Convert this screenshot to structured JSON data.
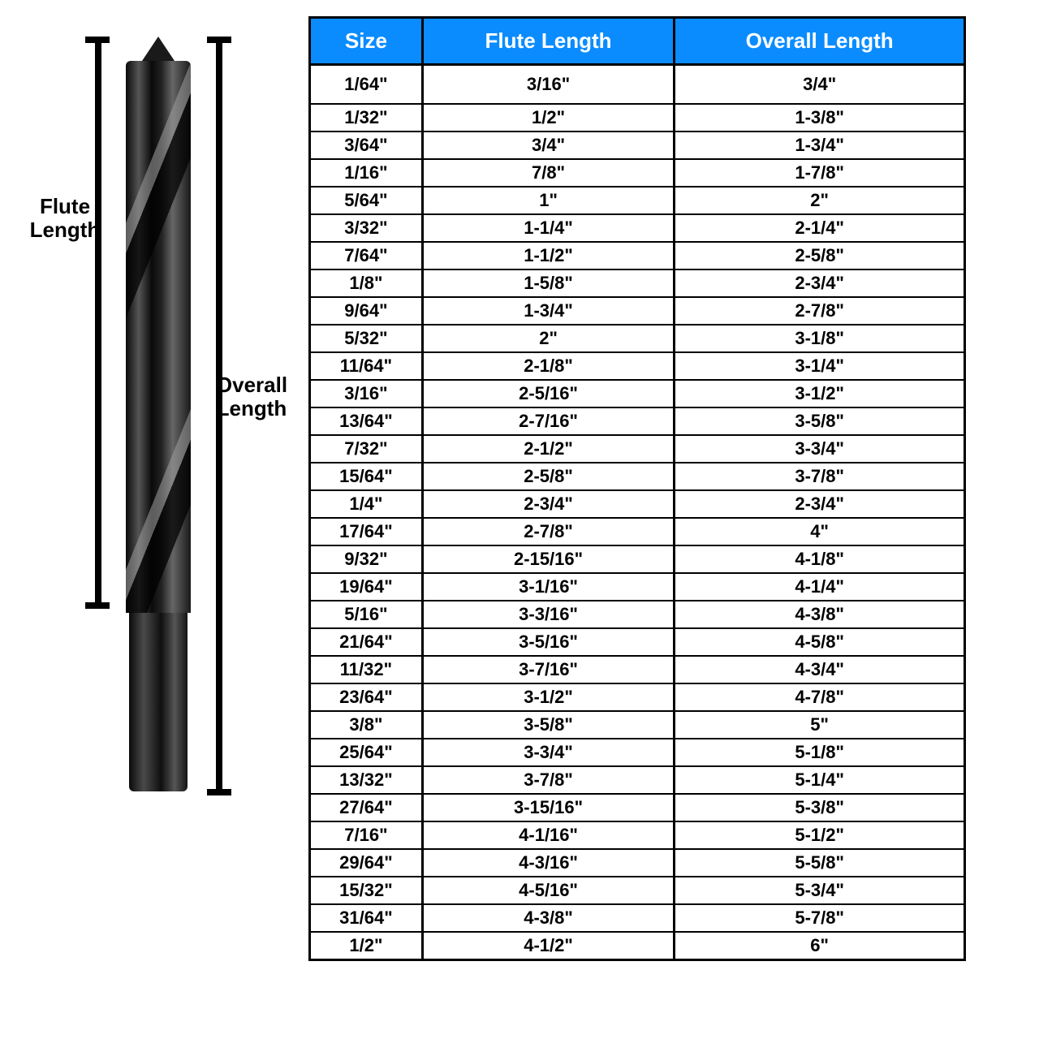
{
  "diagram": {
    "flute_label_l1": "Flute",
    "flute_label_l2": "Length",
    "overall_label_l1": "Overall",
    "overall_label_l2": "Length"
  },
  "table": {
    "header_bg": "#0a8cff",
    "columns": [
      "Size",
      "Flute Length",
      "Overall Length"
    ],
    "rows": [
      [
        "1/64\"",
        "3/16\"",
        "3/4\""
      ],
      [
        "1/32\"",
        "1/2\"",
        "1-3/8\""
      ],
      [
        "3/64\"",
        "3/4\"",
        "1-3/4\""
      ],
      [
        "1/16\"",
        "7/8\"",
        "1-7/8\""
      ],
      [
        "5/64\"",
        "1\"",
        "2\""
      ],
      [
        "3/32\"",
        "1-1/4\"",
        "2-1/4\""
      ],
      [
        "7/64\"",
        "1-1/2\"",
        "2-5/8\""
      ],
      [
        "1/8\"",
        "1-5/8\"",
        "2-3/4\""
      ],
      [
        "9/64\"",
        "1-3/4\"",
        "2-7/8\""
      ],
      [
        "5/32\"",
        "2\"",
        "3-1/8\""
      ],
      [
        "11/64\"",
        "2-1/8\"",
        "3-1/4\""
      ],
      [
        "3/16\"",
        "2-5/16\"",
        "3-1/2\""
      ],
      [
        "13/64\"",
        "2-7/16\"",
        "3-5/8\""
      ],
      [
        "7/32\"",
        "2-1/2\"",
        "3-3/4\""
      ],
      [
        "15/64\"",
        "2-5/8\"",
        "3-7/8\""
      ],
      [
        "1/4\"",
        "2-3/4\"",
        "2-3/4\""
      ],
      [
        "17/64\"",
        "2-7/8\"",
        "4\""
      ],
      [
        "9/32\"",
        "2-15/16\"",
        "4-1/8\""
      ],
      [
        "19/64\"",
        "3-1/16\"",
        "4-1/4\""
      ],
      [
        "5/16\"",
        "3-3/16\"",
        "4-3/8\""
      ],
      [
        "21/64\"",
        "3-5/16\"",
        "4-5/8\""
      ],
      [
        "11/32\"",
        "3-7/16\"",
        "4-3/4\""
      ],
      [
        "23/64\"",
        "3-1/2\"",
        "4-7/8\""
      ],
      [
        "3/8\"",
        "3-5/8\"",
        "5\""
      ],
      [
        "25/64\"",
        "3-3/4\"",
        "5-1/8\""
      ],
      [
        "13/32\"",
        "3-7/8\"",
        "5-1/4\""
      ],
      [
        "27/64\"",
        "3-15/16\"",
        "5-3/8\""
      ],
      [
        "7/16\"",
        "4-1/16\"",
        "5-1/2\""
      ],
      [
        "29/64\"",
        "4-3/16\"",
        "5-5/8\""
      ],
      [
        "15/32\"",
        "4-5/16\"",
        "5-3/4\""
      ],
      [
        "31/64\"",
        "4-3/8\"",
        "5-7/8\""
      ],
      [
        "1/2\"",
        "4-1/2\"",
        "6\""
      ]
    ]
  }
}
